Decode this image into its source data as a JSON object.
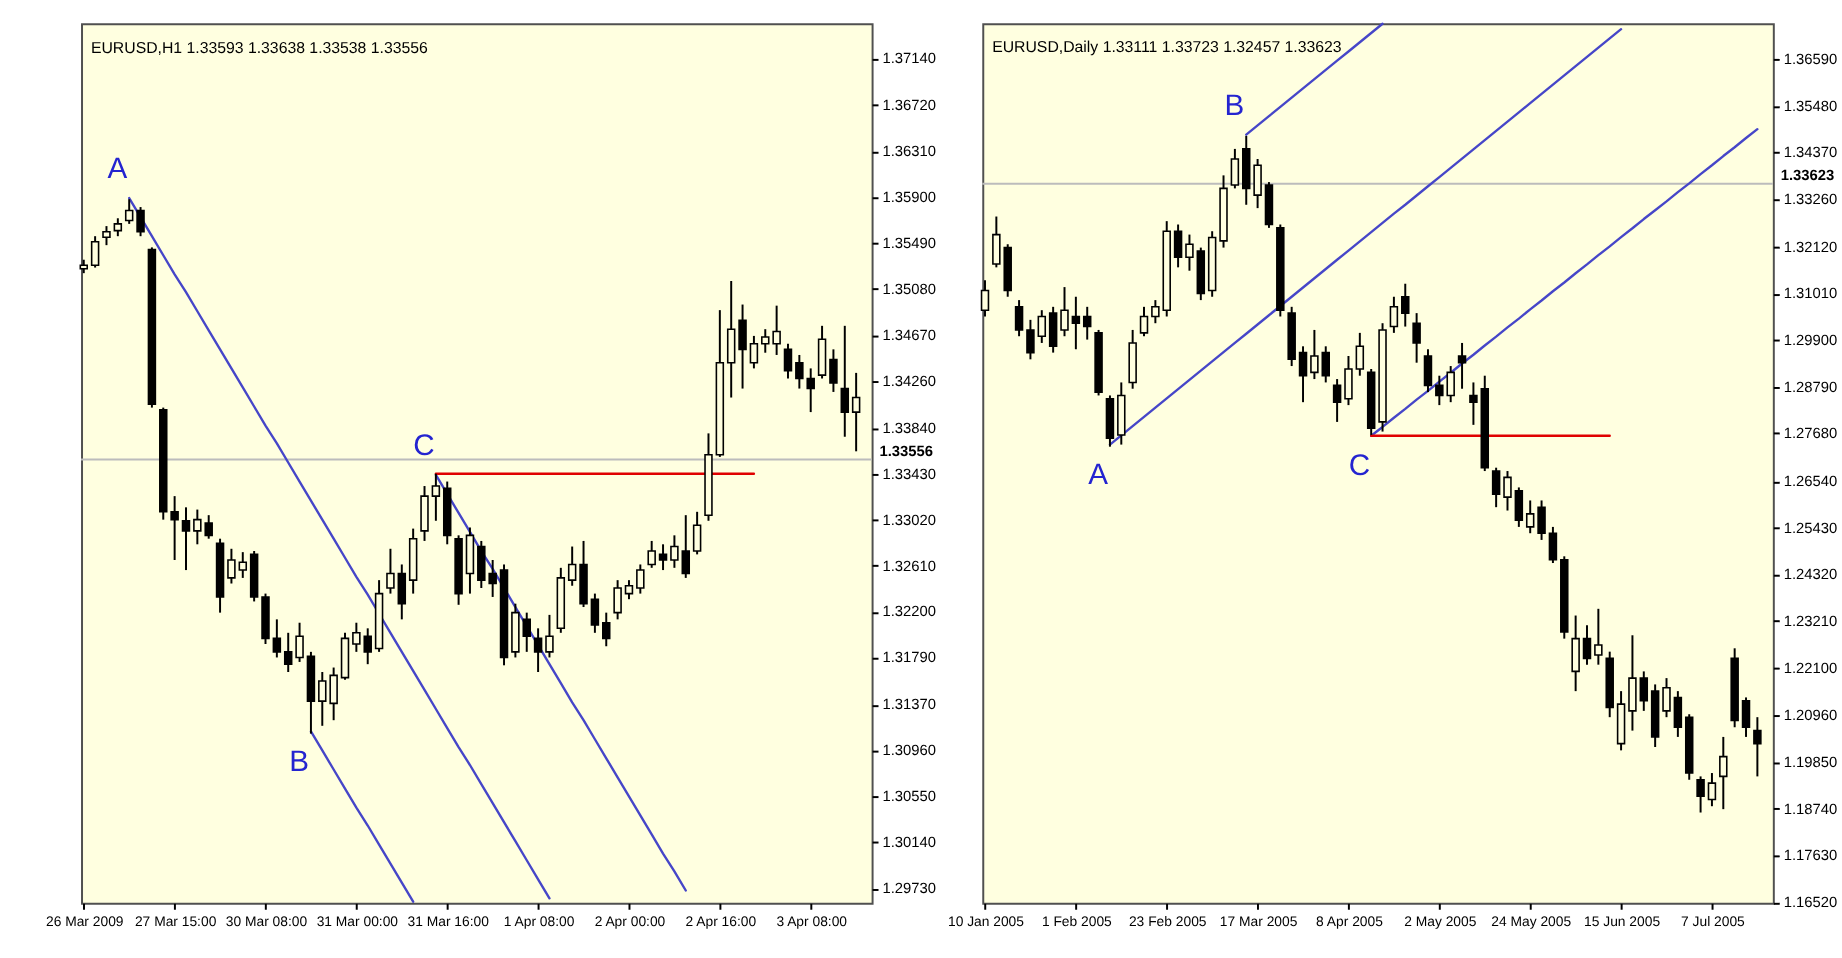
{
  "chart_data": [
    {
      "type": "candlestick",
      "title": "EURUSD,H1 1.33593 1.33638 1.33538 1.33556",
      "color": "#000000",
      "categories": [
        "26 Mar 2009",
        null,
        null,
        null,
        null,
        null,
        null,
        null,
        "27 Mar 15:00",
        null,
        null,
        null,
        null,
        null,
        null,
        null,
        "30 Mar 08:00",
        null,
        null,
        null,
        null,
        null,
        null,
        null,
        "31 Mar 00:00",
        null,
        null,
        null,
        null,
        null,
        null,
        null,
        "31 Mar 16:00",
        null,
        null,
        null,
        null,
        null,
        null,
        null,
        "1 Apr 08:00",
        null,
        null,
        null,
        null,
        null,
        null,
        null,
        "2 Apr 00:00",
        null,
        null,
        null,
        null,
        null,
        null,
        null,
        "2 Apr 16:00",
        null,
        null,
        null,
        null,
        null,
        null,
        null,
        "3 Apr 08:00",
        null,
        null,
        null,
        null
      ],
      "ohlc": [
        [
          1.3526,
          1.3534,
          1.3522,
          1.3529
        ],
        [
          1.3529,
          1.3555,
          1.3527,
          1.355
        ],
        [
          1.3554,
          1.3564,
          1.3547,
          1.3559
        ],
        [
          1.356,
          1.3571,
          1.3555,
          1.3566
        ],
        [
          1.3569,
          1.3588,
          1.3566,
          1.3578
        ],
        [
          1.3578,
          1.3581,
          1.3555,
          1.3559
        ],
        [
          1.3543,
          1.3545,
          1.3402,
          1.3405
        ],
        [
          1.34,
          1.3402,
          1.3302,
          1.3309
        ],
        [
          1.3309,
          1.3323,
          1.3266,
          1.3302
        ],
        [
          1.3301,
          1.3313,
          1.3257,
          1.3292
        ],
        [
          1.3292,
          1.3311,
          1.328,
          1.3302
        ],
        [
          1.3299,
          1.3306,
          1.3285,
          1.3288
        ],
        [
          1.3281,
          1.3285,
          1.3219,
          1.3233
        ],
        [
          1.325,
          1.3276,
          1.3245,
          1.3266
        ],
        [
          1.3257,
          1.3273,
          1.325,
          1.3264
        ],
        [
          1.3271,
          1.3274,
          1.3229,
          1.3233
        ],
        [
          1.3233,
          1.3236,
          1.3191,
          1.3196
        ],
        [
          1.3196,
          1.3213,
          1.3179,
          1.3184
        ],
        [
          1.3184,
          1.3201,
          1.3166,
          1.3173
        ],
        [
          1.3179,
          1.321,
          1.3175,
          1.3198
        ],
        [
          1.318,
          1.3184,
          1.3111,
          1.314
        ],
        [
          1.314,
          1.3166,
          1.3118,
          1.3158
        ],
        [
          1.3138,
          1.317,
          1.3123,
          1.3163
        ],
        [
          1.3161,
          1.3201,
          1.3159,
          1.3196
        ],
        [
          1.3191,
          1.321,
          1.3184,
          1.3201
        ],
        [
          1.3198,
          1.3205,
          1.3173,
          1.3184
        ],
        [
          1.3187,
          1.3248,
          1.3184,
          1.3236
        ],
        [
          1.3241,
          1.3276,
          1.3236,
          1.3254
        ],
        [
          1.3254,
          1.3262,
          1.3213,
          1.3227
        ],
        [
          1.3248,
          1.3294,
          1.3236,
          1.3285
        ],
        [
          1.3292,
          1.3332,
          1.3283,
          1.3323
        ],
        [
          1.3323,
          1.3343,
          1.3301,
          1.3332
        ],
        [
          1.333,
          1.3336,
          1.328,
          1.3288
        ],
        [
          1.3285,
          1.3288,
          1.3226,
          1.3236
        ],
        [
          1.3254,
          1.3295,
          1.3236,
          1.3288
        ],
        [
          1.3278,
          1.3283,
          1.3241,
          1.3248
        ],
        [
          1.3254,
          1.3266,
          1.3233,
          1.3245
        ],
        [
          1.3257,
          1.3262,
          1.3172,
          1.3179
        ],
        [
          1.3184,
          1.3227,
          1.3179,
          1.3219
        ],
        [
          1.3213,
          1.3219,
          1.3184,
          1.3198
        ],
        [
          1.3196,
          1.3205,
          1.3166,
          1.3184
        ],
        [
          1.3184,
          1.3217,
          1.3179,
          1.3198
        ],
        [
          1.3205,
          1.3259,
          1.3201,
          1.325
        ],
        [
          1.3248,
          1.3278,
          1.3243,
          1.3262
        ],
        [
          1.3262,
          1.3283,
          1.3224,
          1.3227
        ],
        [
          1.3231,
          1.3236,
          1.3201,
          1.3208
        ],
        [
          1.321,
          1.3219,
          1.3189,
          1.3196
        ],
        [
          1.3219,
          1.3248,
          1.3213,
          1.3241
        ],
        [
          1.3236,
          1.3248,
          1.3231,
          1.3243
        ],
        [
          1.3241,
          1.3262,
          1.3236,
          1.3257
        ],
        [
          1.3262,
          1.3283,
          1.3259,
          1.3274
        ],
        [
          1.3271,
          1.328,
          1.3257,
          1.3266
        ],
        [
          1.3266,
          1.3288,
          1.3259,
          1.3278
        ],
        [
          1.3274,
          1.3306,
          1.325,
          1.3254
        ],
        [
          1.3274,
          1.3309,
          1.3271,
          1.3297
        ],
        [
          1.3306,
          1.3379,
          1.3301,
          1.336
        ],
        [
          1.336,
          1.3489,
          1.3358,
          1.3442
        ],
        [
          1.3442,
          1.3515,
          1.3411,
          1.3472
        ],
        [
          1.348,
          1.3494,
          1.3419,
          1.3454
        ],
        [
          1.3442,
          1.3466,
          1.3437,
          1.3459
        ],
        [
          1.3459,
          1.3472,
          1.3451,
          1.3465
        ],
        [
          1.3459,
          1.3493,
          1.3449,
          1.347
        ],
        [
          1.3454,
          1.3459,
          1.3428,
          1.3435
        ],
        [
          1.3442,
          1.3449,
          1.3419,
          1.3428
        ],
        [
          1.3428,
          1.3437,
          1.3398,
          1.3419
        ],
        [
          1.3431,
          1.3475,
          1.3428,
          1.3463
        ],
        [
          1.3445,
          1.3454,
          1.3416,
          1.3424
        ],
        [
          1.3419,
          1.3475,
          1.3376,
          1.3398
        ],
        [
          1.3398,
          1.3433,
          1.3363,
          1.3411
        ]
      ],
      "ylim": [
        1.296,
        1.3745
      ],
      "yticks": [
        {
          "value": 1.3714,
          "label": "1.37140"
        },
        {
          "value": 1.3672,
          "label": "1.36720"
        },
        {
          "value": 1.3631,
          "label": "1.36310"
        },
        {
          "value": 1.359,
          "label": "1.35900"
        },
        {
          "value": 1.3549,
          "label": "1.35490"
        },
        {
          "value": 1.3508,
          "label": "1.35080"
        },
        {
          "value": 1.3467,
          "label": "1.34670"
        },
        {
          "value": 1.3426,
          "label": "1.34260"
        },
        {
          "value": 1.3384,
          "label": "1.33840"
        },
        {
          "value": 1.3343,
          "label": "1.33430"
        },
        {
          "value": 1.3302,
          "label": "1.33020"
        },
        {
          "value": 1.3261,
          "label": "1.32610"
        },
        {
          "value": 1.322,
          "label": "1.32200"
        },
        {
          "value": 1.3179,
          "label": "1.31790"
        },
        {
          "value": 1.3137,
          "label": "1.31370"
        },
        {
          "value": 1.3096,
          "label": "1.30960"
        },
        {
          "value": 1.3055,
          "label": "1.30550"
        },
        {
          "value": 1.3014,
          "label": "1.30140"
        },
        {
          "value": 1.2973,
          "label": "1.29730"
        }
      ],
      "series": [
        {
          "type": "line",
          "color": "#4646c8",
          "values": [
            null,
            null,
            null,
            null,
            1.3589,
            1.3572,
            1.3555,
            1.3538,
            1.3521,
            1.3505,
            1.3488,
            1.3471,
            1.3454,
            1.3437,
            1.342,
            1.3403,
            1.3386,
            1.337,
            1.3353,
            1.3336,
            1.3319,
            1.3302,
            1.3285,
            1.3268,
            1.3251,
            1.3235,
            1.3218,
            1.3201,
            1.3184,
            1.3167,
            1.315,
            1.3133,
            1.3116,
            1.3099,
            1.3083,
            1.3066,
            1.3049,
            1.3032,
            1.3015,
            1.2998,
            1.2981,
            1.2964,
            null,
            null,
            null,
            null,
            null,
            null,
            null,
            null,
            null,
            null,
            null,
            null,
            null,
            null,
            null,
            null,
            null,
            null,
            null,
            null,
            null,
            null,
            null,
            null,
            null,
            null,
            null
          ]
        },
        {
          "type": "line",
          "color": "#4646c8",
          "values": [
            null,
            null,
            null,
            null,
            null,
            null,
            null,
            null,
            null,
            null,
            null,
            null,
            null,
            null,
            null,
            null,
            null,
            null,
            null,
            null,
            1.3113,
            1.3096,
            1.3079,
            1.3062,
            1.3045,
            1.3029,
            1.3012,
            1.2995,
            1.2978,
            1.2961,
            null,
            null,
            null,
            null,
            null,
            null,
            null,
            null,
            null,
            null,
            null,
            null,
            null,
            null,
            null,
            null,
            null,
            null,
            null,
            null,
            null,
            null,
            null,
            null,
            null,
            null,
            null,
            null,
            null,
            null,
            null,
            null,
            null,
            null,
            null,
            null,
            null,
            null,
            null
          ]
        },
        {
          "type": "line",
          "color": "#4646c8",
          "values": [
            null,
            null,
            null,
            null,
            null,
            null,
            null,
            null,
            null,
            null,
            null,
            null,
            null,
            null,
            null,
            null,
            null,
            null,
            null,
            null,
            null,
            null,
            null,
            null,
            null,
            null,
            null,
            null,
            null,
            null,
            null,
            1.3342,
            1.3325,
            1.3308,
            1.3291,
            1.3274,
            1.3258,
            1.3241,
            1.3224,
            1.3207,
            1.319,
            1.3173,
            1.3156,
            1.3139,
            1.3123,
            1.3106,
            1.3089,
            1.3072,
            1.3055,
            1.3038,
            1.3021,
            1.3004,
            1.2988,
            1.2971,
            null,
            null,
            null,
            null,
            null,
            null,
            null,
            null,
            null,
            null,
            null,
            null,
            null,
            null,
            null
          ]
        },
        {
          "type": "line",
          "color": "#e00000",
          "values": [
            null,
            null,
            null,
            null,
            null,
            null,
            null,
            null,
            null,
            null,
            null,
            null,
            null,
            null,
            null,
            null,
            null,
            null,
            null,
            null,
            null,
            null,
            null,
            null,
            null,
            null,
            null,
            null,
            null,
            null,
            null,
            1.3343,
            1.3343,
            1.3343,
            1.3343,
            1.3343,
            1.3343,
            1.3343,
            1.3343,
            1.3343,
            1.3343,
            1.3343,
            1.3343,
            1.3343,
            1.3343,
            1.3343,
            1.3343,
            1.3343,
            1.3343,
            1.3343,
            1.3343,
            1.3343,
            1.3343,
            1.3343,
            1.3343,
            1.3343,
            1.3343,
            1.3343,
            1.3343,
            1.3343,
            null,
            null,
            null,
            null,
            null,
            null,
            null,
            null,
            null
          ]
        }
      ],
      "ref_lines": [
        {
          "axis": "y",
          "value": 1.33556,
          "label": "1.33556",
          "color": "#bcbcbc"
        }
      ],
      "annotations": [
        "A",
        "B",
        "C"
      ]
    },
    {
      "type": "candlestick",
      "title": "EURUSD,Daily 1.33111 1.33723 1.32457 1.33623",
      "color": "#000000",
      "categories": [
        "10 Jan 2005",
        null,
        null,
        null,
        null,
        null,
        null,
        null,
        "1 Feb 2005",
        null,
        null,
        null,
        null,
        null,
        null,
        null,
        "23 Feb 2005",
        null,
        null,
        null,
        null,
        null,
        null,
        null,
        "17 Mar 2005",
        null,
        null,
        null,
        null,
        null,
        null,
        null,
        "8 Apr 2005",
        null,
        null,
        null,
        null,
        null,
        null,
        null,
        "2 May 2005",
        null,
        null,
        null,
        null,
        null,
        null,
        null,
        "24 May 2005",
        null,
        null,
        null,
        null,
        null,
        null,
        null,
        "15 Jun 2005",
        null,
        null,
        null,
        null,
        null,
        null,
        null,
        "7 Jul 2005",
        null,
        null,
        null,
        null
      ],
      "ohlc": [
        [
          1.3061,
          1.3132,
          1.3046,
          1.3108
        ],
        [
          1.3171,
          1.3284,
          1.3163,
          1.3241
        ],
        [
          1.321,
          1.3218,
          1.3093,
          1.3108
        ],
        [
          1.3069,
          1.3085,
          1.2999,
          1.3014
        ],
        [
          1.3014,
          1.3038,
          1.2944,
          1.296
        ],
        [
          1.2999,
          1.3061,
          1.2983,
          1.3046
        ],
        [
          1.3054,
          1.3069,
          1.296,
          1.2975
        ],
        [
          1.3014,
          1.3116,
          1.2999,
          1.3061
        ],
        [
          1.3046,
          1.3093,
          1.2968,
          1.303
        ],
        [
          1.3046,
          1.3069,
          1.2991,
          1.3022
        ],
        [
          1.3007,
          1.3014,
          1.2858,
          1.2866
        ],
        [
          1.285,
          1.2858,
          1.2736,
          1.2756
        ],
        [
          1.2764,
          1.2889,
          1.2741,
          1.2858
        ],
        [
          1.2889,
          1.3014,
          1.2874,
          1.2983
        ],
        [
          1.3007,
          1.3069,
          1.2999,
          1.3046
        ],
        [
          1.3046,
          1.3085,
          1.303,
          1.3069
        ],
        [
          1.3061,
          1.3273,
          1.3046,
          1.3249
        ],
        [
          1.3249,
          1.3265,
          1.3163,
          1.3187
        ],
        [
          1.3187,
          1.3241,
          1.3155,
          1.3218
        ],
        [
          1.3202,
          1.321,
          1.3085,
          1.3101
        ],
        [
          1.3108,
          1.3249,
          1.3093,
          1.3234
        ],
        [
          1.3226,
          1.3382,
          1.321,
          1.3351
        ],
        [
          1.3359,
          1.3445,
          1.3351,
          1.3421
        ],
        [
          1.3445,
          1.3476,
          1.3312,
          1.3351
        ],
        [
          1.3335,
          1.3421,
          1.3304,
          1.3406
        ],
        [
          1.3359,
          1.3366,
          1.3257,
          1.3265
        ],
        [
          1.3257,
          1.3265,
          1.3046,
          1.3061
        ],
        [
          1.3054,
          1.3069,
          1.2928,
          1.2944
        ],
        [
          1.296,
          1.2975,
          1.2842,
          1.2905
        ],
        [
          1.2913,
          1.3014,
          1.2897,
          1.2952
        ],
        [
          1.296,
          1.2975,
          1.2889,
          1.2905
        ],
        [
          1.2882,
          1.2897,
          1.2795,
          1.2842
        ],
        [
          1.285,
          1.2952,
          1.2835,
          1.2921
        ],
        [
          1.2921,
          1.3007,
          1.2905,
          1.2975
        ],
        [
          1.2913,
          1.2921,
          1.2764,
          1.278
        ],
        [
          1.2795,
          1.303,
          1.2772,
          1.3014
        ],
        [
          1.3022,
          1.3093,
          1.3007,
          1.3069
        ],
        [
          1.3093,
          1.3124,
          1.3022,
          1.3054
        ],
        [
          1.303,
          1.3054,
          1.2936,
          1.2983
        ],
        [
          1.2952,
          1.2968,
          1.2866,
          1.2882
        ],
        [
          1.2882,
          1.2905,
          1.2835,
          1.2858
        ],
        [
          1.2858,
          1.2928,
          1.2842,
          1.2913
        ],
        [
          1.2952,
          1.2983,
          1.2874,
          1.2936
        ],
        [
          1.2858,
          1.2889,
          1.2788,
          1.2842
        ],
        [
          1.2874,
          1.2905,
          1.2678,
          1.2686
        ],
        [
          1.2678,
          1.2686,
          1.2592,
          1.2623
        ],
        [
          1.2616,
          1.2678,
          1.2584,
          1.2663
        ],
        [
          1.2631,
          1.2639,
          1.2545,
          1.2561
        ],
        [
          1.2545,
          1.2608,
          1.253,
          1.2576
        ],
        [
          1.2592,
          1.2608,
          1.2514,
          1.253
        ],
        [
          1.253,
          1.2545,
          1.2459,
          1.2467
        ],
        [
          1.2467,
          1.2475,
          1.2279,
          1.2295
        ],
        [
          1.2201,
          1.2334,
          1.2154,
          1.2279
        ],
        [
          1.2279,
          1.2311,
          1.2217,
          1.2232
        ],
        [
          1.224,
          1.235,
          1.2217,
          1.2264
        ],
        [
          1.2232,
          1.2248,
          1.2092,
          1.2115
        ],
        [
          1.2029,
          1.2154,
          1.2013,
          1.2123
        ],
        [
          1.2107,
          1.2287,
          1.206,
          1.2185
        ],
        [
          1.2185,
          1.2201,
          1.2107,
          1.2131
        ],
        [
          1.2154,
          1.217,
          1.2021,
          1.2045
        ],
        [
          1.2107,
          1.2185,
          1.2092,
          1.2162
        ],
        [
          1.2139,
          1.2154,
          1.2045,
          1.2068
        ],
        [
          1.2092,
          1.2099,
          1.1943,
          1.1959
        ],
        [
          1.1943,
          1.1951,
          1.1865,
          1.1904
        ],
        [
          1.1896,
          1.1959,
          1.188,
          1.1935
        ],
        [
          1.1951,
          1.2045,
          1.1873,
          1.1998
        ],
        [
          1.2232,
          1.2256,
          1.2068,
          1.2084
        ],
        [
          1.2131,
          1.2139,
          1.2045,
          1.2068
        ],
        [
          1.206,
          1.2092,
          1.1951,
          1.2029
        ]
      ],
      "ylim": [
        1.165,
        1.3744
      ],
      "yticks": [
        {
          "value": 1.3659,
          "label": "1.36590"
        },
        {
          "value": 1.3548,
          "label": "1.35480"
        },
        {
          "value": 1.3437,
          "label": "1.34370"
        },
        {
          "value": 1.3326,
          "label": "1.33260"
        },
        {
          "value": 1.3212,
          "label": "1.32120"
        },
        {
          "value": 1.3101,
          "label": "1.31010"
        },
        {
          "value": 1.299,
          "label": "1.29900"
        },
        {
          "value": 1.2879,
          "label": "1.28790"
        },
        {
          "value": 1.2768,
          "label": "1.27680"
        },
        {
          "value": 1.2654,
          "label": "1.26540"
        },
        {
          "value": 1.2543,
          "label": "1.25430"
        },
        {
          "value": 1.2432,
          "label": "1.24320"
        },
        {
          "value": 1.2321,
          "label": "1.23210"
        },
        {
          "value": 1.221,
          "label": "1.22100"
        },
        {
          "value": 1.2096,
          "label": "1.20960"
        },
        {
          "value": 1.1985,
          "label": "1.19850"
        },
        {
          "value": 1.1874,
          "label": "1.18740"
        },
        {
          "value": 1.1763,
          "label": "1.17630"
        },
        {
          "value": 1.1652,
          "label": "1.16520"
        }
      ],
      "series": [
        {
          "type": "line",
          "color": "#4646c8",
          "values": [
            null,
            null,
            null,
            null,
            null,
            null,
            null,
            null,
            null,
            null,
            null,
            1.2741,
            1.2763,
            1.2785,
            1.2807,
            1.2829,
            1.2851,
            1.2873,
            1.2895,
            1.2917,
            1.2939,
            1.2961,
            1.2983,
            1.3005,
            1.3027,
            1.3049,
            1.3071,
            1.3093,
            1.3115,
            1.3137,
            1.3159,
            1.3181,
            1.3203,
            1.3225,
            1.3247,
            1.3269,
            1.3291,
            1.3312,
            1.3334,
            1.3356,
            1.3378,
            1.34,
            1.3422,
            1.3444,
            1.3466,
            1.3488,
            1.351,
            1.3532,
            1.3554,
            1.3576,
            1.3598,
            1.362,
            1.3642,
            1.3664,
            1.3686,
            1.3708,
            1.373,
            null,
            null,
            null,
            null,
            null,
            null,
            null,
            null,
            null,
            null,
            null,
            null
          ]
        },
        {
          "type": "line",
          "color": "#4646c8",
          "values": [
            null,
            null,
            null,
            null,
            null,
            null,
            null,
            null,
            null,
            null,
            null,
            null,
            null,
            null,
            null,
            null,
            null,
            null,
            null,
            null,
            null,
            null,
            null,
            1.3479,
            1.3501,
            1.3523,
            1.3545,
            1.3567,
            1.3589,
            1.3611,
            1.3633,
            1.3655,
            1.3677,
            1.3699,
            1.3721,
            1.3743,
            null,
            null,
            null,
            null,
            null,
            null,
            null,
            null,
            null,
            null,
            null,
            null,
            null,
            null,
            null,
            null,
            null,
            null,
            null,
            null,
            null,
            null,
            null,
            null,
            null,
            null,
            null,
            null,
            null,
            null,
            null,
            null,
            null
          ]
        },
        {
          "type": "line",
          "color": "#4646c8",
          "values": [
            null,
            null,
            null,
            null,
            null,
            null,
            null,
            null,
            null,
            null,
            null,
            null,
            null,
            null,
            null,
            null,
            null,
            null,
            null,
            null,
            null,
            null,
            null,
            null,
            null,
            null,
            null,
            null,
            null,
            null,
            null,
            null,
            null,
            null,
            1.2762,
            1.2783,
            1.2805,
            1.2826,
            1.2848,
            1.2869,
            1.2891,
            1.2912,
            1.2934,
            1.2955,
            1.2977,
            1.2998,
            1.302,
            1.3041,
            1.3063,
            1.3084,
            1.3106,
            1.3127,
            1.3149,
            1.317,
            1.3192,
            1.3213,
            1.3235,
            1.3256,
            1.3278,
            1.3299,
            1.332,
            1.3342,
            1.3363,
            1.3385,
            1.3406,
            1.3428,
            1.3449,
            1.3471,
            1.3492
          ]
        },
        {
          "type": "line",
          "color": "#e00000",
          "values": [
            null,
            null,
            null,
            null,
            null,
            null,
            null,
            null,
            null,
            null,
            null,
            null,
            null,
            null,
            null,
            null,
            null,
            null,
            null,
            null,
            null,
            null,
            null,
            null,
            null,
            null,
            null,
            null,
            null,
            null,
            null,
            null,
            null,
            null,
            1.2762,
            1.2762,
            1.2762,
            1.2762,
            1.2762,
            1.2762,
            1.2762,
            1.2762,
            1.2762,
            1.2762,
            1.2762,
            1.2762,
            1.2762,
            1.2762,
            1.2762,
            1.2762,
            1.2762,
            1.2762,
            1.2762,
            1.2762,
            1.2762,
            1.2762,
            null,
            null,
            null,
            null,
            null,
            null,
            null,
            null,
            null,
            null,
            null,
            null,
            null
          ]
        }
      ],
      "ref_lines": [
        {
          "axis": "y",
          "value": 1.33623,
          "label": "1.33623",
          "color": "#bcbcbc"
        }
      ],
      "annotations": [
        "A",
        "B",
        "C"
      ]
    }
  ]
}
